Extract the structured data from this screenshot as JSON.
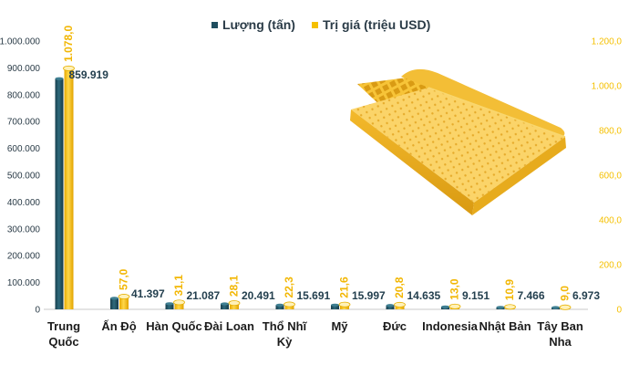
{
  "chart_data": {
    "type": "bar",
    "categories": [
      "Trung Quốc",
      "Ấn Độ",
      "Hàn Quốc",
      "Đài Loan",
      "Thổ Nhĩ Kỳ",
      "Mỹ",
      "Đức",
      "Indonesia",
      "Nhật Bản",
      "Tây Ban Nha"
    ],
    "series": [
      {
        "name": "Lượng (tấn)",
        "axis": "left",
        "color": "#1f4e5f",
        "values": [
          859919,
          41397,
          21087,
          20491,
          15691,
          15997,
          14635,
          9151,
          7466,
          6973
        ],
        "labels": [
          "859.919",
          "41.397",
          "21.087",
          "20.491",
          "15.691",
          "15.997",
          "14.635",
          "9.151",
          "7.466",
          "6.973"
        ]
      },
      {
        "name": "Trị giá (triệu USD)",
        "axis": "right",
        "color": "#f5c000",
        "values": [
          1078.0,
          57.0,
          31.1,
          28.1,
          22.3,
          21.6,
          20.8,
          13.0,
          10.9,
          9.0
        ],
        "labels": [
          "1.078,0",
          "57,0",
          "31,1",
          "28,1",
          "22,3",
          "21,6",
          "20,8",
          "13,0",
          "10,9",
          "9,0"
        ]
      }
    ],
    "y_left": {
      "range": [
        0,
        1000000
      ],
      "ticks": [
        0,
        100000,
        200000,
        300000,
        400000,
        500000,
        600000,
        700000,
        800000,
        900000,
        1000000
      ],
      "tick_labels": [
        "0",
        "100.000",
        "200.000",
        "300.000",
        "400.000",
        "500.000",
        "600.000",
        "700.000",
        "800.000",
        "900.000",
        "1.000.000"
      ]
    },
    "y_right": {
      "range": [
        0,
        1200
      ],
      "ticks": [
        0,
        200,
        400,
        600,
        800,
        1000,
        1200
      ],
      "tick_labels": [
        "0",
        "200,0",
        "400,0",
        "600,0",
        "800,0",
        "1.000,0",
        "1.200,0"
      ]
    },
    "legend_position": "top-center",
    "grid": false
  }
}
